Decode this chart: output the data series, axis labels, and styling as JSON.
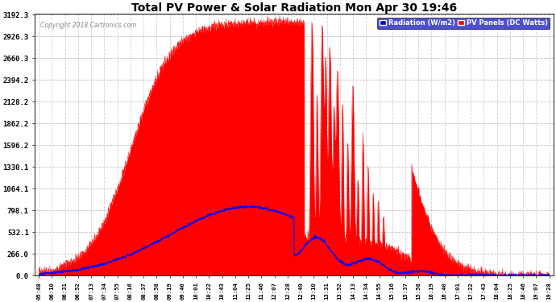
{
  "title": "Total PV Power & Solar Radiation Mon Apr 30 19:46",
  "copyright": "Copyright 2018 Cartronics.com",
  "legend_radiation": "Radiation (W/m2)",
  "legend_pv": "PV Panels (DC Watts)",
  "yticks": [
    0.0,
    266.0,
    532.1,
    798.1,
    1064.1,
    1330.1,
    1596.2,
    1862.2,
    2128.2,
    2394.2,
    2660.3,
    2926.3,
    3192.3
  ],
  "ymax": 3192.3,
  "ymin": 0.0,
  "background_color": "#ffffff",
  "plot_bg_color": "#ffffff",
  "grid_color": "#aaaaaa",
  "red_fill_color": "#ff0000",
  "blue_line_color": "#0000ff",
  "time_labels": [
    "05:48",
    "06:10",
    "06:31",
    "06:52",
    "07:13",
    "07:34",
    "07:55",
    "08:16",
    "08:37",
    "08:58",
    "09:19",
    "09:40",
    "10:01",
    "10:22",
    "10:43",
    "11:04",
    "11:25",
    "11:46",
    "12:07",
    "12:28",
    "12:49",
    "13:10",
    "13:31",
    "13:52",
    "14:13",
    "14:34",
    "14:55",
    "15:16",
    "15:37",
    "15:58",
    "16:19",
    "16:40",
    "17:01",
    "17:22",
    "17:43",
    "18:04",
    "18:25",
    "18:46",
    "19:07",
    "19:28"
  ]
}
